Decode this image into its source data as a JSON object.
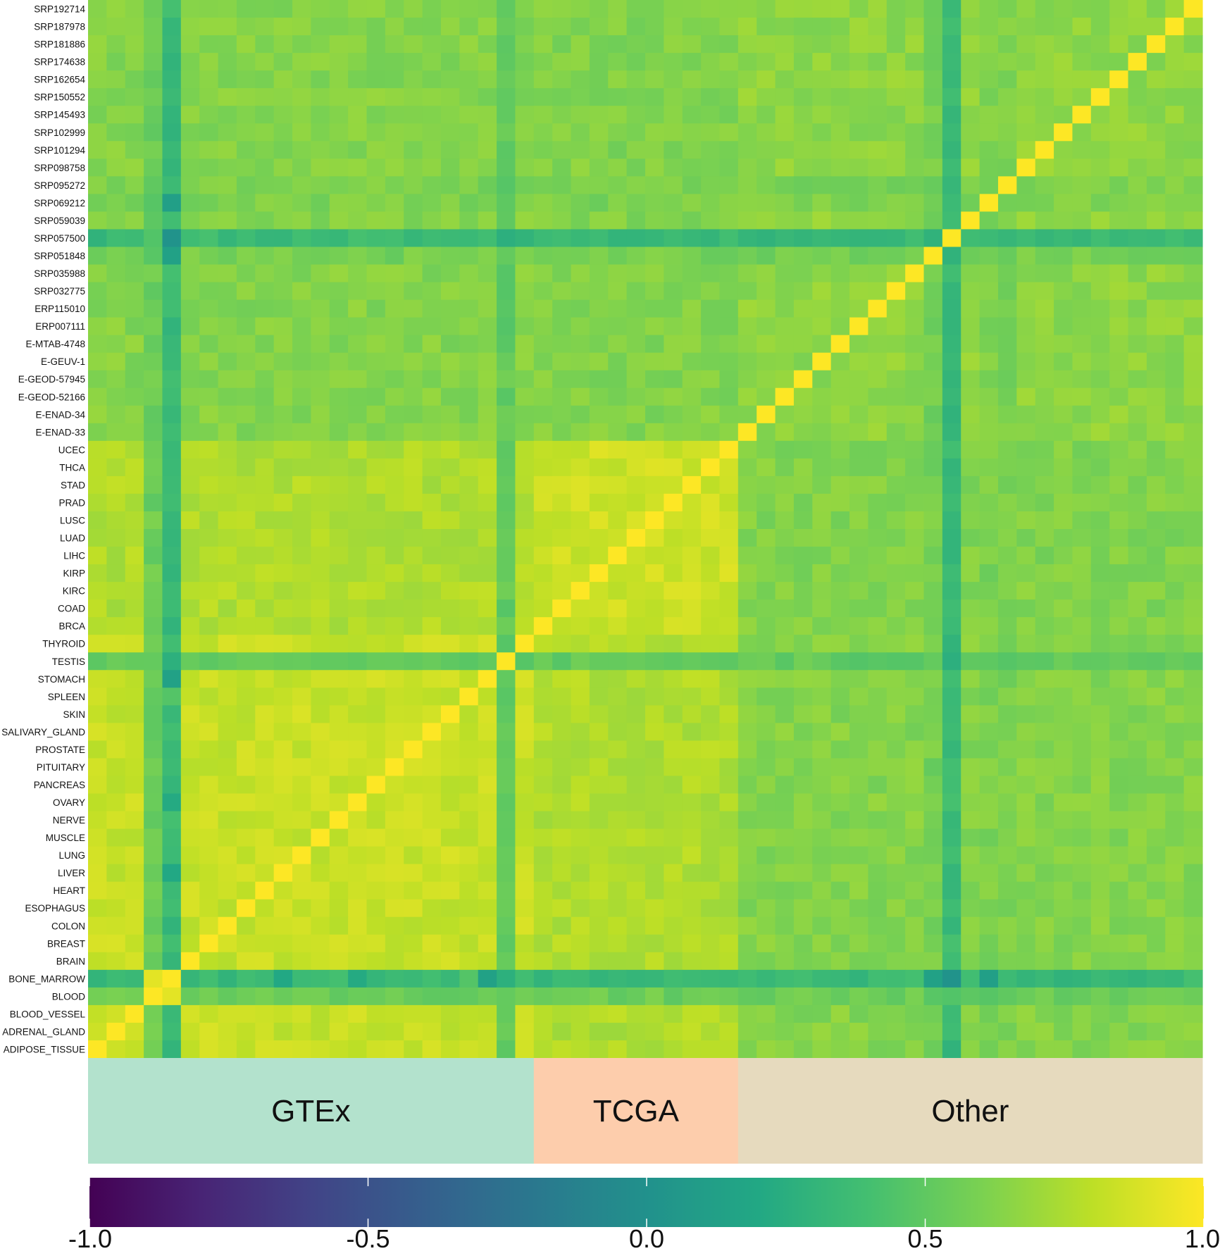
{
  "chart_data": {
    "type": "heatmap",
    "metric": "correlation",
    "row_labels_top_to_bottom": [
      "SRP192714",
      "SRP187978",
      "SRP181886",
      "SRP174638",
      "SRP162654",
      "SRP150552",
      "SRP145493",
      "SRP102999",
      "SRP101294",
      "SRP098758",
      "SRP095272",
      "SRP069212",
      "SRP059039",
      "SRP057500",
      "SRP051848",
      "SRP035988",
      "SRP032775",
      "ERP115010",
      "ERP007111",
      "E-MTAB-4748",
      "E-GEUV-1",
      "E-GEOD-57945",
      "E-GEOD-52166",
      "E-ENAD-34",
      "E-ENAD-33",
      "UCEC",
      "THCA",
      "STAD",
      "PRAD",
      "LUSC",
      "LUAD",
      "LIHC",
      "KIRP",
      "KIRC",
      "COAD",
      "BRCA",
      "THYROID",
      "TESTIS",
      "STOMACH",
      "SPLEEN",
      "SKIN",
      "SALIVARY_GLAND",
      "PROSTATE",
      "PITUITARY",
      "PANCREAS",
      "OVARY",
      "NERVE",
      "MUSCLE",
      "LUNG",
      "LIVER",
      "HEART",
      "ESOPHAGUS",
      "COLON",
      "BREAST",
      "BRAIN",
      "BONE_MARROW",
      "BLOOD",
      "BLOOD_VESSEL",
      "ADRENAL_GLAND",
      "ADIPOSE_TISSUE"
    ],
    "column_order_note": "columns follow the same items in reverse (ADIPOSE_TISSUE at left, SRP192714 at right); diagonal = 1.0",
    "column_groups": [
      {
        "label": "GTEx",
        "count": 24,
        "color": "#b3e2cd"
      },
      {
        "label": "TCGA",
        "count": 11,
        "color": "#fdcdac"
      },
      {
        "label": "Other",
        "count": 25,
        "color": "#e6dabe"
      }
    ],
    "group_block_means": [
      [
        0.83,
        0.76,
        0.63
      ],
      [
        0.76,
        0.85,
        0.62
      ],
      [
        0.63,
        0.62,
        0.66
      ]
    ],
    "low_correlation_samples": {
      "BONE_MARROW": 0.35,
      "BLOOD": 0.55,
      "TESTIS": 0.52,
      "SRP057500": 0.35,
      "SRP051848": 0.58,
      "SRP095272": 0.6,
      "SRP069212": 0.6
    },
    "outlier_pairs": [
      {
        "a": "BONE_MARROW",
        "b": "SRP057500",
        "value": 0.02
      },
      {
        "a": "BONE_MARROW",
        "b": "SRP051848",
        "value": 0.14
      },
      {
        "a": "BONE_MARROW",
        "b": "SRP069212",
        "value": 0.12
      },
      {
        "a": "BONE_MARROW",
        "b": "STOMACH",
        "value": 0.14
      },
      {
        "a": "BONE_MARROW",
        "b": "LIVER",
        "value": 0.2
      },
      {
        "a": "BONE_MARROW",
        "b": "OVARY",
        "value": 0.22
      },
      {
        "a": "BONE_MARROW",
        "b": "SPLEEN",
        "value": 0.46
      },
      {
        "a": "BONE_MARROW",
        "b": "BLOOD",
        "value": 0.92
      },
      {
        "a": "SRP057500",
        "b": "BLOOD",
        "value": 0.45
      }
    ],
    "colorbar": {
      "colormap": "viridis",
      "range": [
        -1.0,
        1.0
      ],
      "ticks": [
        -1.0,
        -0.5,
        0.0,
        0.5,
        1.0
      ],
      "tick_labels": [
        "-1.0",
        "-0.5",
        "0.0",
        "0.5",
        "1.0"
      ]
    }
  }
}
